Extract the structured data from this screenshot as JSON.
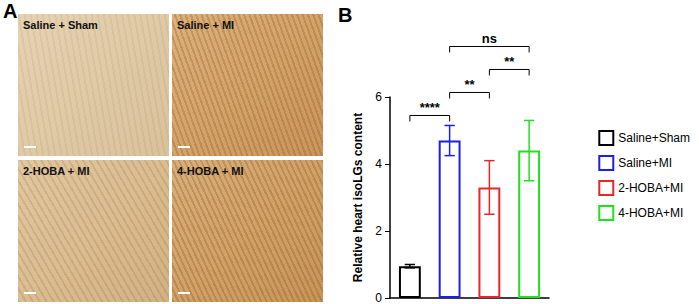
{
  "panel_a": {
    "label": "A",
    "images": [
      "Saline + Sham",
      "Saline + MI",
      "2-HOBA + MI",
      "4-HOBA + MI"
    ]
  },
  "chart_data": {
    "type": "bar",
    "title": "B",
    "categories": [
      "Saline+Sham",
      "Saline+MI",
      "2-HOBA+MI",
      "4-HOBA+MI"
    ],
    "values": [
      0.95,
      4.7,
      3.3,
      4.4
    ],
    "errors": [
      0.05,
      0.45,
      0.8,
      0.9
    ],
    "colors": [
      "#000000",
      "#1f1fe0",
      "#e8262a",
      "#22e020"
    ],
    "y_label": "Relative heart isoLGs content",
    "ylim": [
      0,
      6
    ],
    "yticks": [
      0,
      2,
      4,
      6
    ],
    "grid": false,
    "legend": "right",
    "tick_labels": "y",
    "brackets": [
      {
        "from": "Saline+Sham",
        "to": "Saline+MI",
        "label": "****"
      },
      {
        "from": "Saline+MI",
        "to": "2-HOBA+MI",
        "label": "**"
      },
      {
        "from": "2-HOBA+MI",
        "to": "4-HOBA+MI",
        "label": "**"
      },
      {
        "from": "Saline+MI",
        "to": "4-HOBA+MI",
        "label": "ns"
      }
    ]
  }
}
